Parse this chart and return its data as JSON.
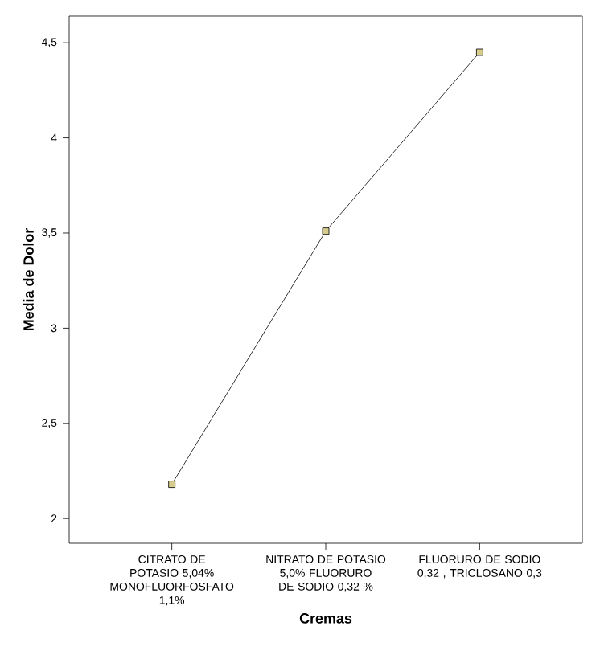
{
  "chart_data": {
    "type": "line",
    "xlabel": "Cremas",
    "ylabel": "Media de Dolor",
    "categories": [
      "CITRATO DE POTASIO 5,04% MONOFLUORFOSFATO 1,1%",
      "NITRATO DE POTASIO 5,0% FLUORURO DE SODIO 0,32 %",
      "FLUORURO DE SODIO 0,32 , TRICLOSANO 0,3"
    ],
    "series": [
      {
        "color": "#d8cc8c",
        "values": [
          2.18,
          3.51,
          4.45
        ]
      }
    ],
    "ylim": [
      1.87,
      4.64
    ],
    "yticks": [
      {
        "value": 2,
        "label": "2"
      },
      {
        "value": 2.5,
        "label": "2,5"
      },
      {
        "value": 3,
        "label": "3"
      },
      {
        "value": 3.5,
        "label": "3,5"
      },
      {
        "value": 4,
        "label": "4"
      },
      {
        "value": 4.5,
        "label": "4,5"
      }
    ],
    "marker": "square",
    "line_style": "solid"
  }
}
